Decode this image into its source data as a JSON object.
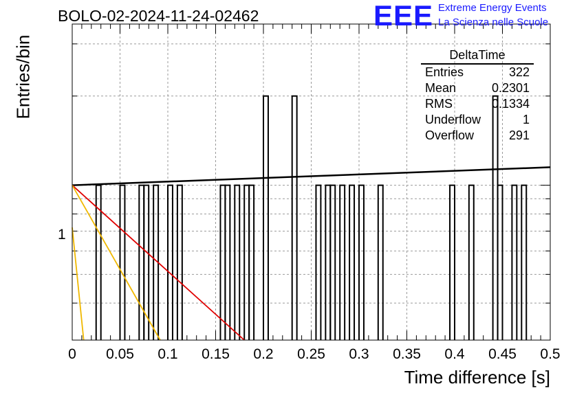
{
  "plot_title": "BOLO-02-2024-11-24-02462",
  "logo": {
    "text": "EEE",
    "line1": "Extreme Energy Events",
    "line2": "La Scienza nelle Scuole",
    "color": "#1a1aff"
  },
  "stats": {
    "title": "DeltaTime",
    "rows": [
      {
        "label": "Entries",
        "value": "322"
      },
      {
        "label": "Mean",
        "value": "0.2301"
      },
      {
        "label": "RMS",
        "value": "0.1334"
      },
      {
        "label": "Underflow",
        "value": "1"
      },
      {
        "label": "Overflow",
        "value": "291"
      }
    ]
  },
  "chart_data": {
    "type": "histogram",
    "xlabel": "Time difference [s]",
    "ylabel": "Entries/bin",
    "xlim": [
      0,
      0.5
    ],
    "y_scale": "log",
    "ylim": [
      0.3,
      3.5
    ],
    "x_tick_labels": [
      "0",
      "0.05",
      "0.1",
      "0.15",
      "0.2",
      "0.25",
      "0.3",
      "0.35",
      "0.4",
      "0.45",
      "0.5"
    ],
    "y_tick_labels": [
      "1"
    ],
    "grid": true,
    "bin_width": 0.005,
    "bins": [
      {
        "x": 0.025,
        "count": 1
      },
      {
        "x": 0.05,
        "count": 1
      },
      {
        "x": 0.07,
        "count": 1
      },
      {
        "x": 0.075,
        "count": 1
      },
      {
        "x": 0.085,
        "count": 1
      },
      {
        "x": 0.1,
        "count": 1
      },
      {
        "x": 0.11,
        "count": 1
      },
      {
        "x": 0.155,
        "count": 1
      },
      {
        "x": 0.16,
        "count": 1
      },
      {
        "x": 0.17,
        "count": 1
      },
      {
        "x": 0.18,
        "count": 1
      },
      {
        "x": 0.185,
        "count": 1
      },
      {
        "x": 0.2,
        "count": 2
      },
      {
        "x": 0.23,
        "count": 2
      },
      {
        "x": 0.255,
        "count": 1
      },
      {
        "x": 0.265,
        "count": 1
      },
      {
        "x": 0.27,
        "count": 1
      },
      {
        "x": 0.28,
        "count": 1
      },
      {
        "x": 0.29,
        "count": 1
      },
      {
        "x": 0.3,
        "count": 1
      },
      {
        "x": 0.32,
        "count": 1
      },
      {
        "x": 0.395,
        "count": 1
      },
      {
        "x": 0.415,
        "count": 1
      },
      {
        "x": 0.44,
        "count": 2
      },
      {
        "x": 0.445,
        "count": 1
      },
      {
        "x": 0.46,
        "count": 1
      },
      {
        "x": 0.47,
        "count": 1
      }
    ],
    "fits": [
      {
        "color": "#000000",
        "points": [
          [
            0,
            1.0
          ],
          [
            0.5,
            1.15
          ]
        ]
      },
      {
        "color": "#e00000",
        "points": [
          [
            0,
            1.0
          ],
          [
            0.18,
            0.3
          ]
        ]
      },
      {
        "color": "#f0b800",
        "points": [
          [
            0,
            1.0
          ],
          [
            0.092,
            0.3
          ]
        ]
      },
      {
        "color": "#f0b800",
        "points": [
          [
            0,
            0.72
          ],
          [
            0.012,
            0.3
          ]
        ]
      }
    ]
  }
}
